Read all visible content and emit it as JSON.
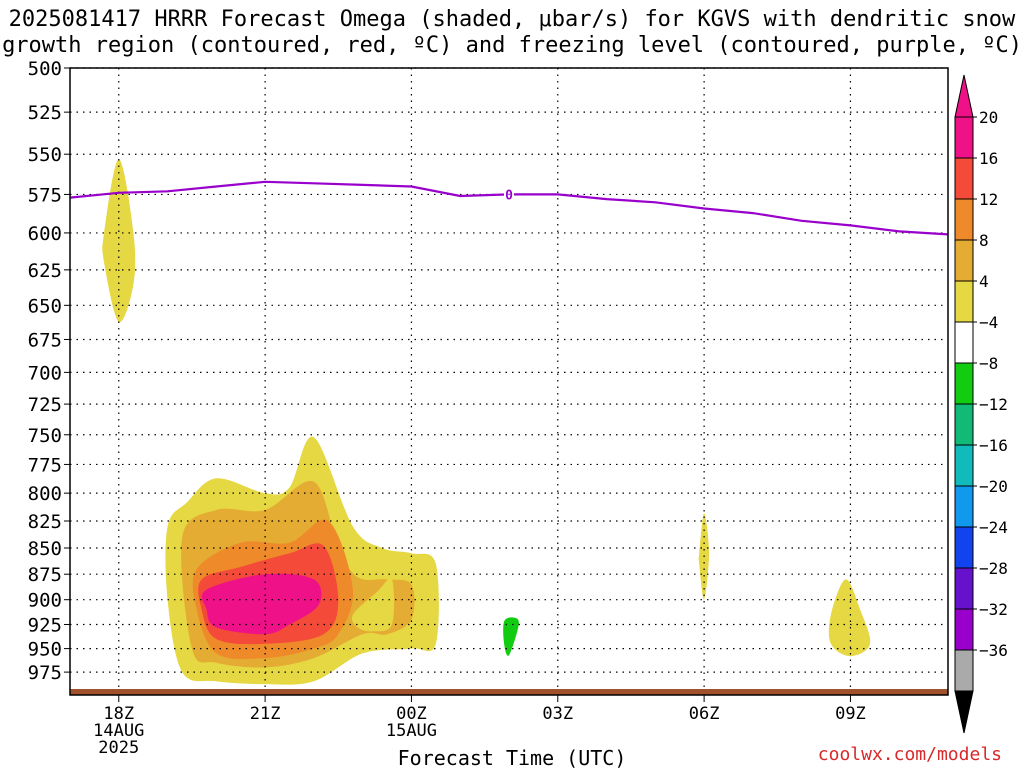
{
  "title_line1": "2025081417 HRRR Forecast Omega (shaded, μbar/s) for KGVS with dendritic snow",
  "title_line2": "growth region (contoured, red, ºC) and freezing level (contoured, purple, ºC)",
  "credit": "coolwx.com/models",
  "colors": {
    "freezing_level": "#9900cc",
    "ground": "#a0522d",
    "c4": "#e5d842",
    "c8": "#e5ac33",
    "c12": "#ee8a2a",
    "c16": "#f44a3a",
    "c20": "#ee1188",
    "neg4": "#11cc11"
  },
  "chart_data": {
    "type": "contour",
    "xlabel": "Forecast Time (UTC)",
    "ylabel": "",
    "x_ticks": [
      {
        "hour": 0,
        "lines": [
          "18Z",
          "14AUG",
          "2025"
        ]
      },
      {
        "hour": 3,
        "lines": [
          "21Z"
        ]
      },
      {
        "hour": 6,
        "lines": [
          "00Z",
          "15AUG"
        ]
      },
      {
        "hour": 9,
        "lines": [
          "03Z"
        ]
      },
      {
        "hour": 12,
        "lines": [
          "06Z"
        ]
      },
      {
        "hour": 15,
        "lines": [
          "09Z"
        ]
      }
    ],
    "xlim": [
      -1,
      17
    ],
    "y_ticks": [
      500,
      525,
      550,
      575,
      600,
      625,
      650,
      675,
      700,
      725,
      750,
      775,
      800,
      825,
      850,
      875,
      900,
      925,
      950,
      975
    ],
    "ylim": [
      500,
      1000
    ],
    "y_scale": "log-pressure",
    "grid": true,
    "freezing_level": {
      "hour": [
        -1,
        0,
        1,
        2,
        3,
        4,
        5,
        6,
        7,
        8,
        9,
        10,
        11,
        12,
        13,
        14,
        15,
        16,
        17
      ],
      "pressure_hPa": [
        577,
        574,
        573,
        570,
        567,
        568,
        569,
        570,
        576,
        575,
        575,
        578,
        580,
        584,
        587,
        592,
        595,
        599,
        601
      ]
    },
    "freezing_level_label_hour": 8,
    "omega_regions": [
      {
        "level": 4,
        "hour": [
          -0.3,
          0.0,
          0.3,
          0.3,
          0.0,
          -0.3
        ],
        "p": [
          600,
          553,
          600,
          635,
          662,
          620
        ]
      },
      {
        "level": 4,
        "hour": [
          1.0,
          1.4,
          2.0,
          3.0,
          3.5,
          4.0,
          4.8,
          5.4,
          6.0,
          6.5,
          6.5,
          6.0,
          5.0,
          4.0,
          3.0,
          2.0,
          1.3,
          1.0
        ],
        "p": [
          830,
          808,
          787,
          800,
          795,
          752,
          830,
          850,
          855,
          865,
          945,
          950,
          955,
          985,
          988,
          985,
          975,
          900
        ]
      },
      {
        "level": 8,
        "hour": [
          1.3,
          2.0,
          3.0,
          4.0,
          4.5,
          4.9,
          5.5,
          6.0,
          6.0,
          5.5,
          5.0,
          4.0,
          3.0,
          2.0,
          1.5
        ],
        "p": [
          840,
          815,
          815,
          790,
          850,
          878,
          880,
          885,
          920,
          935,
          935,
          960,
          970,
          965,
          950
        ]
      },
      {
        "level": 12,
        "hour": [
          1.6,
          2.5,
          3.5,
          4.3,
          4.8,
          4.5,
          4.0,
          3.0,
          2.0,
          1.6
        ],
        "p": [
          870,
          845,
          845,
          825,
          890,
          935,
          950,
          960,
          955,
          910
        ]
      },
      {
        "level": 16,
        "hour": [
          1.7,
          2.5,
          3.5,
          4.2,
          4.5,
          4.2,
          3.0,
          2.0,
          1.7
        ],
        "p": [
          880,
          868,
          855,
          848,
          900,
          935,
          945,
          940,
          910
        ]
      },
      {
        "level": 20,
        "hour": [
          1.8,
          3.0,
          4.0,
          4.1,
          3.5,
          3.0,
          2.0,
          1.8
        ],
        "p": [
          890,
          875,
          880,
          905,
          925,
          935,
          928,
          910
        ]
      },
      {
        "level": 4,
        "hour": [
          4.8,
          5.3,
          5.6,
          5.6,
          5.2,
          4.9
        ],
        "p": [
          915,
          892,
          880,
          925,
          932,
          928
        ]
      },
      {
        "level": -4,
        "hour": [
          7.9,
          8.1,
          8.2,
          8.0,
          7.9
        ],
        "p": [
          922,
          918,
          925,
          957,
          945
        ]
      },
      {
        "level": 4,
        "hour": [
          11.9,
          12.0,
          12.1,
          12.0,
          11.9
        ],
        "p": [
          855,
          818,
          855,
          900,
          865
        ]
      },
      {
        "level": 4,
        "hour": [
          14.6,
          14.9,
          15.2,
          15.4,
          15.0,
          14.6
        ],
        "p": [
          915,
          880,
          910,
          945,
          958,
          945
        ]
      }
    ],
    "colorbar": {
      "labels": [
        20,
        16,
        12,
        8,
        4,
        -4,
        -8,
        -12,
        -16,
        -20,
        -24,
        -28,
        -32,
        -36
      ],
      "segments": [
        "#ee1188",
        "#f44a3a",
        "#ee8a2a",
        "#e5ac33",
        "#e5d842",
        "#ffffff",
        "#11cc11",
        "#11bb77",
        "#11bbbb",
        "#1199ee",
        "#1144ee",
        "#6611cc",
        "#9900cc",
        "#aaaaaa"
      ],
      "top_color": "#ee1188",
      "bottom_color": "#000000"
    }
  }
}
